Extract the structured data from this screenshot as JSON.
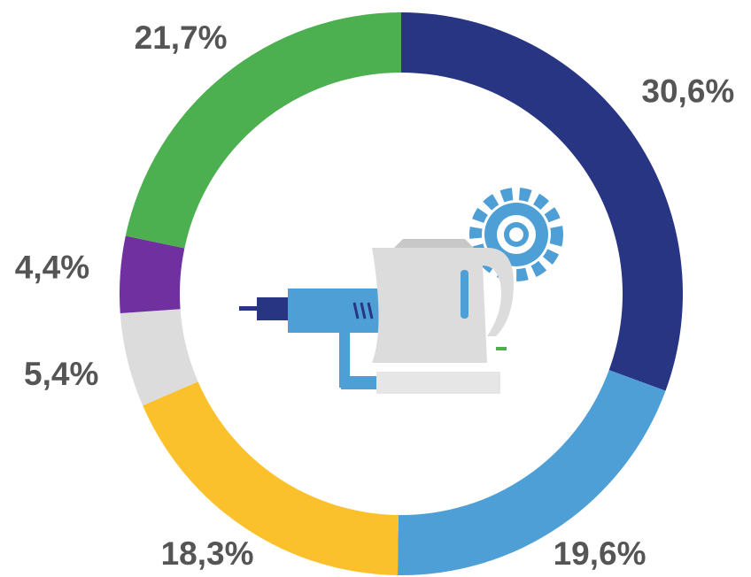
{
  "chart_data": {
    "type": "donut",
    "categories": [
      null,
      null,
      null,
      null,
      null,
      null
    ],
    "values": [
      30.6,
      19.6,
      18.3,
      5.4,
      4.4,
      21.7
    ],
    "value_labels": [
      "30,6%",
      "19,6%",
      "18,3%",
      "5,4%",
      "4,4%",
      "21,7%"
    ],
    "colors": [
      "#283583",
      "#4f9fd7",
      "#fbc12d",
      "#dcdcdc",
      "#7030a0",
      "#4caf50"
    ]
  }
}
